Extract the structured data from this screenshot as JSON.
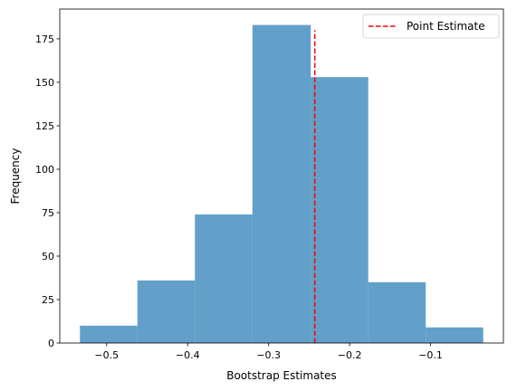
{
  "chart_data": {
    "type": "bar",
    "subtype": "histogram",
    "xlabel": "Bootstrap Estimates",
    "ylabel": "Frequency",
    "bins": [
      {
        "x0": -0.533,
        "x1": -0.462,
        "count": 10
      },
      {
        "x0": -0.462,
        "x1": -0.391,
        "count": 36
      },
      {
        "x0": -0.391,
        "x1": -0.32,
        "count": 74
      },
      {
        "x0": -0.32,
        "x1": -0.248,
        "count": 183
      },
      {
        "x0": -0.248,
        "x1": -0.177,
        "count": 153
      },
      {
        "x0": -0.177,
        "x1": -0.106,
        "count": 35
      },
      {
        "x0": -0.106,
        "x1": -0.035,
        "count": 9
      }
    ],
    "bar_color": "#1f77b4",
    "bar_opacity": 0.7,
    "point_estimate": {
      "x": -0.243,
      "y_top": 180,
      "label": "Point Estimate",
      "color": "#ff0000",
      "style": "dashed"
    },
    "xlim": [
      -0.5579,
      -0.0101
    ],
    "ylim": [
      0,
      192.15
    ],
    "xticks": [
      -0.5,
      -0.4,
      -0.3,
      -0.2,
      -0.1
    ],
    "xtick_labels": [
      "−0.5",
      "−0.4",
      "−0.3",
      "−0.2",
      "−0.1"
    ],
    "yticks": [
      0,
      25,
      50,
      75,
      100,
      125,
      150,
      175
    ],
    "ytick_labels": [
      "0",
      "25",
      "50",
      "75",
      "100",
      "125",
      "150",
      "175"
    ],
    "legend": {
      "position": "upper right",
      "entries": [
        "Point Estimate"
      ]
    },
    "grid": false
  }
}
